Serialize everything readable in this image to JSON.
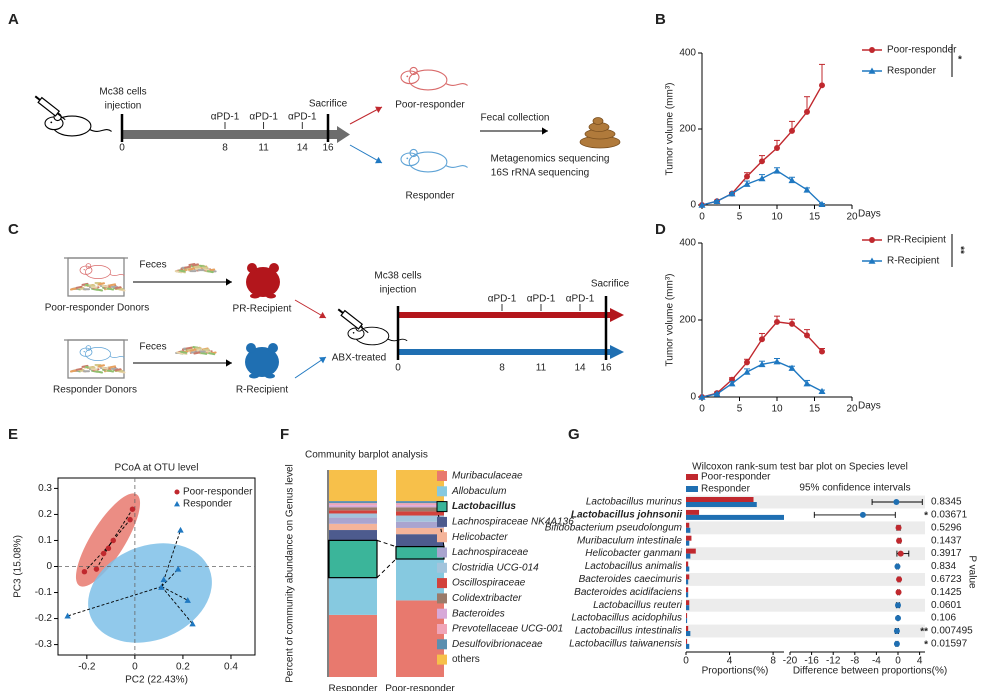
{
  "panel_labels": [
    "A",
    "B",
    "C",
    "D",
    "E",
    "F",
    "G"
  ],
  "diagram_a": {
    "injection": [
      "Mc38 cells",
      "injection"
    ],
    "days": [
      0,
      8,
      11,
      14,
      16
    ],
    "treatments": [
      "αPD-1",
      "αPD-1",
      "αPD-1"
    ],
    "sacrifice": "Sacrifice",
    "groups": [
      "Poor-responder",
      "Responder"
    ],
    "collection": "Fecal collection",
    "methods": [
      "Metagenomics sequencing",
      "16S rRNA sequencing"
    ]
  },
  "diagram_c": {
    "donors": [
      "Poor-responder Donors",
      "Responder Donors"
    ],
    "feces": [
      "Feces",
      "Feces"
    ],
    "recipients": [
      "PR-Recipient",
      "R-Recipient"
    ],
    "treated": "ABX-treated",
    "injection": [
      "Mc38 cells",
      "injection"
    ],
    "days": [
      0,
      8,
      11,
      14,
      16
    ],
    "treatments": [
      "αPD-1",
      "αPD-1",
      "αPD-1"
    ],
    "sacrifice": "Sacrifice"
  },
  "chart_data": [
    {
      "type": "line",
      "xlabel": "Days",
      "ylabel": "Tumor volume (mm³)",
      "x": [
        0,
        2,
        4,
        6,
        8,
        10,
        12,
        14,
        16
      ],
      "xlim": [
        0,
        20
      ],
      "xticks": [
        0,
        5,
        10,
        15,
        20
      ],
      "ylim": [
        0,
        400
      ],
      "yticks": [
        0,
        200,
        400
      ],
      "legend": "right",
      "significance": "*",
      "series": [
        {
          "name": "Poor-responder",
          "color": "#c0282e",
          "marker": "circle",
          "values": [
            0,
            10,
            30,
            75,
            115,
            150,
            195,
            245,
            315
          ],
          "errors": [
            0,
            2,
            3,
            10,
            15,
            20,
            25,
            40,
            55
          ]
        },
        {
          "name": "Responder",
          "color": "#1f78c1",
          "marker": "triangle",
          "values": [
            0,
            10,
            30,
            55,
            70,
            90,
            65,
            40,
            2
          ],
          "errors": [
            0,
            2,
            3,
            8,
            10,
            8,
            8,
            5,
            2
          ]
        }
      ]
    },
    {
      "type": "line",
      "xlabel": "Days",
      "ylabel": "Tumor volume (mm³)",
      "x": [
        0,
        2,
        4,
        6,
        8,
        10,
        12,
        14,
        16
      ],
      "xlim": [
        0,
        20
      ],
      "xticks": [
        0,
        5,
        10,
        15,
        20
      ],
      "ylim": [
        0,
        400
      ],
      "yticks": [
        0,
        200,
        400
      ],
      "legend": "right",
      "significance": "**",
      "series": [
        {
          "name": "PR-Recipient",
          "color": "#c0282e",
          "marker": "circle",
          "values": [
            0,
            10,
            45,
            90,
            150,
            195,
            190,
            160,
            118
          ],
          "errors": [
            0,
            3,
            5,
            8,
            15,
            15,
            12,
            15,
            8
          ]
        },
        {
          "name": "R-Recipient",
          "color": "#1f78c1",
          "marker": "triangle",
          "values": [
            0,
            8,
            35,
            65,
            85,
            92,
            75,
            35,
            15
          ],
          "errors": [
            0,
            2,
            5,
            8,
            8,
            8,
            5,
            8,
            3
          ]
        }
      ]
    },
    {
      "type": "scatter",
      "title": "PCoA at OTU level",
      "xlabel": "PC2 (22.43%)",
      "ylabel": "PC3 (15.08%)",
      "xlim": [
        -0.32,
        0.5
      ],
      "xticks": [
        -0.2,
        0,
        0.2,
        0.4
      ],
      "ylim": [
        -0.34,
        0.34
      ],
      "yticks": [
        -0.3,
        -0.2,
        -0.1,
        0,
        0.1,
        0.2,
        0.3
      ],
      "legend": "upper right",
      "series": [
        {
          "name": "Poor-responder",
          "color": "#c0282e",
          "marker": "circle",
          "x": [
            -0.01,
            -0.02,
            -0.09,
            -0.11,
            -0.13,
            -0.21,
            -0.16
          ],
          "y": [
            0.22,
            0.18,
            0.1,
            0.07,
            0.05,
            -0.02,
            -0.01
          ]
        },
        {
          "name": "Responder",
          "color": "#1f78c1",
          "marker": "triangle",
          "x": [
            0.19,
            0.18,
            0.11,
            0.22,
            0.24,
            -0.28,
            0.12
          ],
          "y": [
            0.14,
            -0.01,
            -0.08,
            -0.13,
            -0.22,
            -0.19,
            -0.05
          ]
        }
      ]
    },
    {
      "type": "stacked",
      "title": "Community barplot analysis",
      "ylabel": "Percent of community abundance on Genus level",
      "categories": [
        "Responder",
        "Poor-responder"
      ],
      "category_colors": [
        "#1f78c1",
        "#c0282e"
      ],
      "ylim": [
        0,
        100
      ],
      "highlight": 2,
      "series": [
        {
          "name": "Muribaculaceae",
          "color": "#e8796e",
          "values": [
            30,
            37
          ]
        },
        {
          "name": "Allobaculum",
          "color": "#86c9e0",
          "values": [
            18,
            20
          ]
        },
        {
          "name": "Lactobacillus",
          "color": "#3bb59a",
          "values": [
            18,
            6
          ]
        },
        {
          "name": "Lachnospiraceae NK4A136",
          "color": "#4d5b8e",
          "values": [
            5,
            6
          ]
        },
        {
          "name": "Helicobacter",
          "color": "#f4b49a",
          "values": [
            3,
            3
          ]
        },
        {
          "name": "Lachnospiraceae",
          "color": "#a9a4cf",
          "values": [
            3,
            3
          ]
        },
        {
          "name": "Clostridia UCG-014",
          "color": "#a3c4dc",
          "values": [
            2,
            3
          ]
        },
        {
          "name": "Oscillospiraceae",
          "color": "#d2423c",
          "values": [
            1.5,
            2
          ]
        },
        {
          "name": "Colidextribacter",
          "color": "#9a7b6a",
          "values": [
            1.5,
            2
          ]
        },
        {
          "name": "Bacteroides",
          "color": "#d7a9d9",
          "values": [
            1,
            1
          ]
        },
        {
          "name": "Prevotellaceae UCG-001",
          "color": "#f0a5b8",
          "values": [
            1,
            1
          ]
        },
        {
          "name": "Desulfovibrionaceae",
          "color": "#5b8fb0",
          "values": [
            1,
            1
          ]
        },
        {
          "name": "others",
          "color": "#f7c04a",
          "values": [
            15,
            15
          ]
        }
      ]
    },
    {
      "type": "wilcoxon",
      "title": "Wilcoxon rank-sum test bar plot on Species level",
      "ci_label": "95% confidence intervals",
      "xlabel": "Proportions(%)",
      "diff_xlabel": "Difference between proportions(%)",
      "p_label": "P value",
      "xlim": [
        0,
        9
      ],
      "xticks": [
        0,
        4,
        8
      ],
      "diff_xlim": [
        -20,
        5
      ],
      "diff_xticks": [
        -20,
        -16,
        -12,
        -8,
        -4,
        0,
        4
      ],
      "highlight": 1,
      "categories": [
        "Lactobacillus murinus",
        "Lactobacillus johnsonii",
        "Bifidobacterium pseudolongum",
        "Muribaculum intestinale",
        "Helicobacter ganmani",
        "Lactobacillus animalis",
        "Bacteroides caecimuris",
        "Bacteroides acidifaciens",
        "Lactobacillus reuteri",
        "Lactobacillus acidophilus",
        "Lactobacillus intestinalis",
        "Lactobacillus taiwanensis"
      ],
      "series": [
        {
          "name": "Poor-responder",
          "color": "#c0282e",
          "values": [
            6.2,
            1.2,
            0.3,
            0.5,
            0.9,
            0.2,
            0.3,
            0.2,
            0.3,
            0.1,
            0.2,
            0.1
          ]
        },
        {
          "name": "Responder",
          "color": "#1f6fb2",
          "values": [
            6.5,
            9,
            0.4,
            0.3,
            0.4,
            0.3,
            0.2,
            0.2,
            0.3,
            0.1,
            0.4,
            0.3
          ]
        }
      ],
      "difference": [
        -0.3,
        -6.5,
        0.1,
        0.2,
        0.5,
        -0.1,
        0.2,
        0.1,
        0,
        0,
        -0.2,
        -0.2
      ],
      "ci_low": [
        -4.8,
        -15.5,
        -0.2,
        0,
        -0.2,
        -0.3,
        0,
        -0.1,
        -0.3,
        -0.1,
        -0.5,
        -0.4
      ],
      "ci_high": [
        4.5,
        -0.5,
        0.4,
        0.5,
        2,
        0.1,
        0.4,
        0.3,
        0.3,
        0.1,
        0.1,
        0
      ],
      "p_values": [
        0.8345,
        0.03671,
        0.5296,
        0.1437,
        0.3917,
        0.834,
        0.6723,
        0.1425,
        0.0601,
        0.106,
        0.007495,
        0.01597
      ],
      "significance": [
        null,
        "*",
        null,
        null,
        null,
        null,
        null,
        null,
        null,
        null,
        "**",
        "*"
      ]
    }
  ]
}
